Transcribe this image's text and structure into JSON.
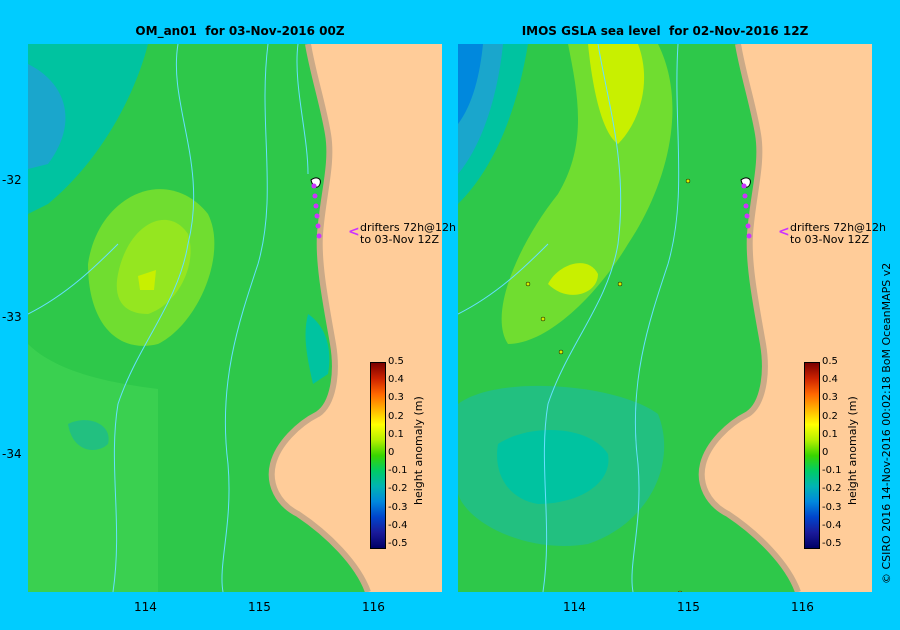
{
  "panels": [
    {
      "title": "OM_an01  for 03-Nov-2016 00Z"
    },
    {
      "title": "IMOS GSLA sea level  for 02-Nov-2016 12Z"
    }
  ],
  "y_axis": {
    "ticks": [
      "-32",
      "-33",
      "-34"
    ]
  },
  "x_axis": {
    "ticks": [
      "114",
      "115",
      "116"
    ]
  },
  "drifter_note": {
    "line1": "drifters 72h@12h",
    "line2": "to 03-Nov 12Z",
    "arrow": "<"
  },
  "colorbar": {
    "label": "height anomaly (m)",
    "ticks": [
      "0.5",
      "0.4",
      "0.3",
      "0.2",
      "0.1",
      "0",
      "-0.1",
      "-0.2",
      "-0.3",
      "-0.4",
      "-0.5"
    ]
  },
  "credit": "© CSIRO 2016   14-Nov-2016 00:02:18 BoM OceanMAPS v2",
  "colors": {
    "background": "#00ccff",
    "land": "#ffcc99",
    "coast": "#ccaa88",
    "drifter": "#cc33ff",
    "bathymetry": "#66e0ff"
  }
}
